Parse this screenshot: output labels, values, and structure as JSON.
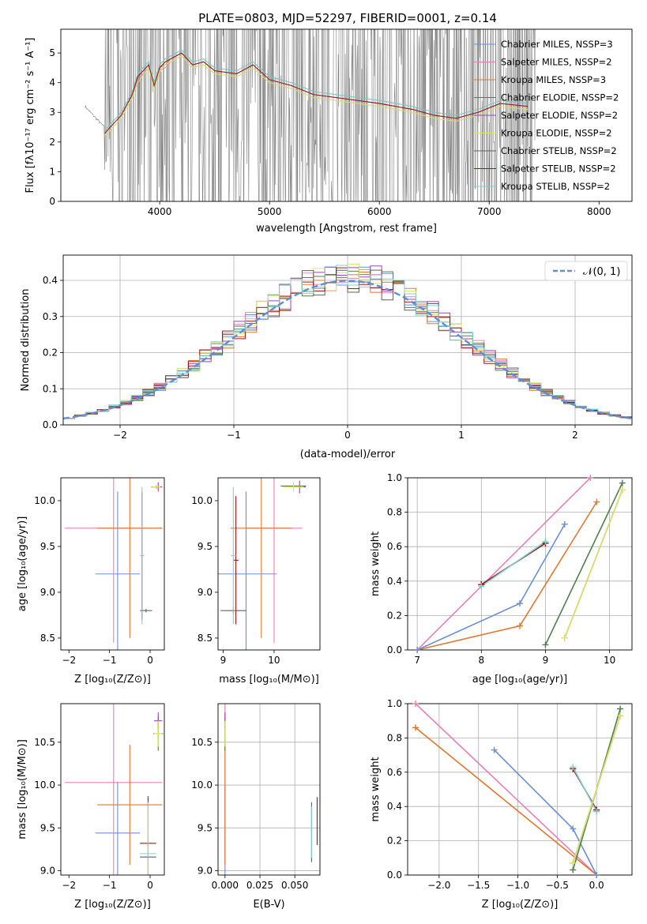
{
  "colors": {
    "Chabrier MILES": "#6a8fd8",
    "Salpeter MILES": "#e880b8",
    "Kroupa MILES": "#e07830",
    "Chabrier ELODIE": "#508050",
    "Salpeter ELODIE": "#a040c0",
    "Kroupa ELODIE": "#d8e860",
    "Chabrier STELIB": "#606060",
    "Salpeter STELIB": "#a01818",
    "Kroupa STELIB": "#80d0d0",
    "normal": "#5b8fd6",
    "data": "#808080"
  },
  "chart_data": [
    {
      "type": "line",
      "title": "PLATE=0803, MJD=52297, FIBERID=0001, z=0.14",
      "xlabel": "wavelength [Angstrom, rest frame]",
      "ylabel": "Flux [fλ10⁻¹⁷ erg cm⁻² s⁻¹ A⁻¹]",
      "xlim": [
        3100,
        8300
      ],
      "ylim": [
        0,
        5.8
      ],
      "x_ticks": [
        "4000",
        "5000",
        "6000",
        "7000",
        "8000"
      ],
      "y_ticks": [
        "0",
        "1",
        "2",
        "3",
        "4",
        "5"
      ],
      "model_x": [
        3500,
        3600,
        3650,
        3750,
        3800,
        3900,
        3950,
        4000,
        4050,
        4100,
        4200,
        4300,
        4400,
        4500,
        4700,
        4850,
        5000,
        5200,
        5400,
        5600,
        5800,
        6000,
        6300,
        6500,
        6700,
        6900,
        7100,
        7350
      ],
      "series": [
        {
          "name": "Chabrier MILES, N_SSP=3",
          "values": [
            2.3,
            2.7,
            2.9,
            3.6,
            4.2,
            4.6,
            3.9,
            4.5,
            4.7,
            4.8,
            5.0,
            4.6,
            4.7,
            4.4,
            4.3,
            4.6,
            4.1,
            3.9,
            3.6,
            3.5,
            3.4,
            3.3,
            3.1,
            2.9,
            2.8,
            3.0,
            3.3,
            3.2
          ]
        },
        {
          "name": "Salpeter MILES, N_SSP=2",
          "values": [
            2.2,
            2.6,
            2.8,
            3.5,
            4.1,
            4.5,
            3.8,
            4.4,
            4.5,
            4.7,
            4.9,
            4.5,
            4.6,
            4.3,
            4.2,
            4.5,
            4.0,
            3.8,
            3.5,
            3.4,
            3.3,
            3.2,
            3.0,
            2.8,
            2.7,
            2.9,
            3.2,
            3.1
          ]
        },
        {
          "name": "Kroupa MILES, N_SSP=3",
          "values": [
            2.3,
            2.7,
            2.9,
            3.6,
            4.2,
            4.6,
            3.9,
            4.5,
            4.6,
            4.8,
            5.0,
            4.6,
            4.7,
            4.4,
            4.3,
            4.6,
            4.1,
            3.9,
            3.6,
            3.5,
            3.4,
            3.3,
            3.1,
            2.9,
            2.8,
            3.0,
            3.3,
            3.2
          ]
        },
        {
          "name": "Chabrier ELODIE, N_SSP=2",
          "values": [
            2.4,
            2.8,
            3.0,
            3.7,
            4.3,
            4.7,
            4.0,
            4.6,
            4.8,
            4.9,
            5.1,
            4.7,
            4.8,
            4.5,
            4.4,
            4.7,
            4.2,
            4.0,
            3.7,
            3.6,
            3.5,
            3.4,
            3.2,
            3.0,
            2.9,
            3.1,
            3.4,
            3.3
          ]
        },
        {
          "name": "Salpeter ELODIE, N_SSP=2",
          "values": [
            2.3,
            2.7,
            2.9,
            3.6,
            4.2,
            4.6,
            3.9,
            4.5,
            4.7,
            4.8,
            5.0,
            4.6,
            4.7,
            4.4,
            4.3,
            4.6,
            4.1,
            3.9,
            3.6,
            3.5,
            3.4,
            3.3,
            3.1,
            2.9,
            2.8,
            3.0,
            3.3,
            3.2
          ]
        },
        {
          "name": "Kroupa ELODIE, N_SSP=2",
          "values": [
            2.2,
            2.6,
            2.8,
            3.5,
            4.0,
            4.5,
            3.8,
            4.4,
            4.6,
            4.7,
            4.9,
            4.5,
            4.6,
            4.3,
            4.2,
            4.5,
            4.0,
            3.8,
            3.5,
            3.4,
            3.3,
            3.2,
            3.0,
            2.8,
            2.7,
            2.9,
            3.2,
            3.1
          ]
        },
        {
          "name": "Chabrier STELIB, N_SSP=2",
          "values": [
            2.3,
            2.7,
            2.9,
            3.6,
            4.2,
            4.6,
            3.9,
            4.5,
            4.7,
            4.8,
            5.0,
            4.6,
            4.7,
            4.4,
            4.3,
            4.6,
            4.1,
            3.9,
            3.6,
            3.5,
            3.4,
            3.3,
            3.1,
            2.9,
            2.8,
            3.0,
            3.3,
            3.2
          ]
        },
        {
          "name": "Salpeter STELIB, N_SSP=2",
          "values": [
            2.3,
            2.7,
            2.9,
            3.6,
            4.2,
            4.6,
            3.9,
            4.5,
            4.7,
            4.8,
            5.0,
            4.6,
            4.7,
            4.4,
            4.3,
            4.6,
            4.1,
            3.9,
            3.6,
            3.5,
            3.4,
            3.3,
            3.1,
            2.9,
            2.8,
            3.0,
            3.3,
            3.2
          ]
        },
        {
          "name": "Kroupa STELIB, N_SSP=2",
          "values": [
            2.4,
            2.8,
            3.0,
            3.7,
            4.3,
            4.7,
            4.0,
            4.6,
            4.8,
            4.9,
            5.1,
            4.7,
            4.8,
            4.5,
            4.4,
            4.7,
            4.2,
            4.0,
            3.7,
            3.6,
            3.5,
            3.4,
            3.2,
            3.0,
            2.9,
            3.1,
            3.4,
            3.3
          ]
        }
      ],
      "data_range": [
        3500,
        7420
      ],
      "legend": "top-right"
    },
    {
      "type": "line",
      "xlabel": "(data-model)/error",
      "ylabel": "Normed distribution",
      "xlim": [
        -2.5,
        2.5
      ],
      "ylim": [
        0,
        0.47
      ],
      "x_ticks": [
        "−2",
        "−1",
        "0",
        "1",
        "2"
      ],
      "y_ticks": [
        "0.0",
        "0.1",
        "0.2",
        "0.3",
        "0.4"
      ],
      "legend_label": "𝒩(0, 1)",
      "legend": "top-right",
      "grid": true,
      "normal": {
        "mean": 0,
        "sigma": 1
      },
      "histogram_bins": {
        "start": -2.5,
        "step": 0.1,
        "count": 50
      }
    },
    {
      "type": "scatter",
      "xlabel": "Z [log₁₀(Z/Z⊙)]",
      "ylabel": "age  [log₁₀(age/yr)]",
      "xlim": [
        -2.2,
        0.35
      ],
      "ylim": [
        8.37,
        10.25
      ],
      "x_ticks": [
        "−2",
        "−1",
        "0"
      ],
      "y_ticks": [
        "8.5",
        "9.0",
        "9.5",
        "10.0"
      ],
      "points": [
        {
          "series": "Chabrier MILES",
          "x": -0.8,
          "y": 9.2,
          "xerr": 0.55,
          "yerr": 0.9
        },
        {
          "series": "Salpeter MILES",
          "x": -0.9,
          "y": 9.7,
          "xerr": 1.2,
          "yerr": 1.25
        },
        {
          "series": "Kroupa MILES",
          "x": -0.5,
          "y": 9.7,
          "xerr": 0.8,
          "yerr": 1.2
        },
        {
          "series": "Chabrier ELODIE",
          "x": 0.15,
          "y": 10.15,
          "xerr": 0.12,
          "yerr": 0.02
        },
        {
          "series": "Salpeter ELODIE",
          "x": 0.2,
          "y": 10.15,
          "xerr": 0.1,
          "yerr": 0.05
        },
        {
          "series": "Kroupa ELODIE",
          "x": 0.15,
          "y": 10.15,
          "xerr": 0.1,
          "yerr": 0.02
        },
        {
          "series": "Chabrier STELIB",
          "x": -0.1,
          "y": 8.8,
          "xerr": 0.15,
          "yerr": 0.02
        },
        {
          "series": "Salpeter STELIB",
          "x": -0.2,
          "y": 9.4,
          "xerr": 0.02,
          "yerr": 0.7
        },
        {
          "series": "Kroupa STELIB",
          "x": -0.2,
          "y": 9.4,
          "xerr": 0.05,
          "yerr": 0.75
        }
      ]
    },
    {
      "type": "scatter",
      "xlabel": "mass [log₁₀(M/M⊙)]",
      "xlim": [
        8.9,
        10.9
      ],
      "ylim": [
        8.37,
        10.25
      ],
      "x_ticks": [
        "9",
        "10"
      ],
      "y_ticks": [
        "8.5",
        "9.0",
        "9.5",
        "10.0"
      ],
      "points": [
        {
          "series": "Chabrier MILES",
          "x": 9.45,
          "y": 9.2,
          "xerr": 0.6,
          "yerr": 0.9
        },
        {
          "series": "Salpeter MILES",
          "x": 10.0,
          "y": 9.7,
          "xerr": 0.55,
          "yerr": 1.25
        },
        {
          "series": "Kroupa MILES",
          "x": 9.75,
          "y": 9.7,
          "xerr": 0.6,
          "yerr": 1.2
        },
        {
          "series": "Chabrier ELODIE",
          "x": 10.38,
          "y": 10.16,
          "xerr": 0.25,
          "yerr": 0.02
        },
        {
          "series": "Salpeter ELODIE",
          "x": 10.5,
          "y": 10.15,
          "xerr": 0.12,
          "yerr": 0.07
        },
        {
          "series": "Kroupa ELODIE",
          "x": 10.38,
          "y": 10.15,
          "xerr": 0.2,
          "yerr": 0.05
        },
        {
          "series": "Chabrier STELIB",
          "x": 9.2,
          "y": 8.8,
          "xerr": 0.25,
          "yerr": 0.03
        },
        {
          "series": "Salpeter STELIB",
          "x": 9.25,
          "y": 9.35,
          "xerr": 0.05,
          "yerr": 0.7
        },
        {
          "series": "Kroupa STELIB",
          "x": 9.2,
          "y": 9.4,
          "xerr": 0.05,
          "yerr": 0.75
        }
      ]
    },
    {
      "type": "line",
      "xlabel": "age  [log₁₀(age/yr)]",
      "ylabel": "mass weight",
      "xlim": [
        6.85,
        10.35
      ],
      "ylim": [
        0,
        1.0
      ],
      "x_ticks": [
        "7",
        "8",
        "9",
        "10"
      ],
      "y_ticks": [
        "0.0",
        "0.2",
        "0.4",
        "0.6",
        "0.8",
        "1.0"
      ],
      "grid": true,
      "series": [
        {
          "series": "Salpeter MILES",
          "x": [
            7.0,
            9.7
          ],
          "y": [
            0.0,
            1.0
          ]
        },
        {
          "series": "Kroupa MILES",
          "x": [
            7.0,
            8.6,
            9.8
          ],
          "y": [
            0.0,
            0.14,
            0.86
          ]
        },
        {
          "series": "Chabrier MILES",
          "x": [
            7.0,
            8.6,
            9.3
          ],
          "y": [
            0.0,
            0.27,
            0.73
          ]
        },
        {
          "series": "Chabrier STELIB",
          "x": [
            8.0,
            9.0
          ],
          "y": [
            0.38,
            0.62
          ]
        },
        {
          "series": "Salpeter STELIB",
          "x": [
            8.0,
            9.0
          ],
          "y": [
            0.38,
            0.62
          ]
        },
        {
          "series": "Kroupa STELIB",
          "x": [
            8.0,
            9.0
          ],
          "y": [
            0.37,
            0.63
          ]
        },
        {
          "series": "Chabrier ELODIE",
          "x": [
            9.0,
            10.2
          ],
          "y": [
            0.03,
            0.97
          ]
        },
        {
          "series": "Salpeter ELODIE",
          "x": [
            9.3,
            10.2
          ],
          "y": [
            0.07,
            0.93
          ]
        },
        {
          "series": "Kroupa ELODIE",
          "x": [
            9.3,
            10.2
          ],
          "y": [
            0.07,
            0.93
          ]
        }
      ]
    },
    {
      "type": "scatter",
      "xlabel": "Z [log₁₀(Z/Z⊙)]",
      "ylabel": "mass [log₁₀(M/M⊙)]",
      "xlim": [
        -2.2,
        0.35
      ],
      "ylim": [
        8.95,
        10.95
      ],
      "x_ticks": [
        "−2",
        "−1",
        "0"
      ],
      "y_ticks": [
        "9.0",
        "9.5",
        "10.0",
        "10.5"
      ],
      "points": [
        {
          "series": "Chabrier MILES",
          "x": -0.8,
          "y": 9.44,
          "xerr": 0.55,
          "yerr": 0.6
        },
        {
          "series": "Salpeter MILES",
          "x": -0.9,
          "y": 10.03,
          "xerr": 1.2,
          "yerr": 1.1
        },
        {
          "series": "Kroupa MILES",
          "x": -0.5,
          "y": 9.77,
          "xerr": 0.8,
          "yerr": 0.7
        },
        {
          "series": "Chabrier ELODIE",
          "x": 0.2,
          "y": 10.6,
          "xerr": 0.12,
          "yerr": 0.2
        },
        {
          "series": "Salpeter ELODIE",
          "x": 0.2,
          "y": 10.75,
          "xerr": 0.1,
          "yerr": 0.1
        },
        {
          "series": "Kroupa ELODIE",
          "x": 0.2,
          "y": 10.6,
          "xerr": 0.1,
          "yerr": 0.15
        },
        {
          "series": "Chabrier STELIB",
          "x": -0.05,
          "y": 9.16,
          "xerr": 0.2,
          "yerr": 0.02
        },
        {
          "series": "Salpeter STELIB",
          "x": -0.05,
          "y": 9.32,
          "xerr": 0.2,
          "yerr": 0.55
        },
        {
          "series": "Kroupa STELIB",
          "x": -0.05,
          "y": 9.2,
          "xerr": 0.2,
          "yerr": 0.6
        }
      ]
    },
    {
      "type": "scatter",
      "xlabel": "E(B-V)",
      "xlim": [
        -0.005,
        0.068
      ],
      "ylim": [
        8.95,
        10.95
      ],
      "x_ticks": [
        "0.000",
        "0.025",
        "0.050"
      ],
      "y_ticks": [
        "9.0",
        "9.5",
        "10.0",
        "10.5"
      ],
      "grid": true,
      "points": [
        {
          "series": "Chabrier MILES",
          "x": 0.0,
          "y": 9.44,
          "yerr": 0.55
        },
        {
          "series": "Salpeter MILES",
          "x": 0.0,
          "y": 10.03,
          "yerr": 1.0
        },
        {
          "series": "Kroupa MILES",
          "x": 0.0,
          "y": 9.77,
          "yerr": 0.7
        },
        {
          "series": "Chabrier ELODIE",
          "x": 0.0,
          "y": 10.6,
          "yerr": 0.2
        },
        {
          "series": "Salpeter ELODIE",
          "x": 0.0,
          "y": 10.75,
          "yerr": 0.1
        },
        {
          "series": "Kroupa ELODIE",
          "x": 0.0,
          "y": 10.6,
          "yerr": 0.15
        },
        {
          "series": "Chabrier STELIB",
          "x": 0.062,
          "y": 9.45,
          "yerr": 0.35
        },
        {
          "series": "Salpeter STELIB",
          "x": 0.066,
          "y": 9.58,
          "yerr": 0.28
        },
        {
          "series": "Kroupa STELIB",
          "x": 0.062,
          "y": 9.45,
          "yerr": 0.3
        }
      ]
    },
    {
      "type": "line",
      "xlabel": "Z [log₁₀(Z/Z⊙)]",
      "ylabel": "mass weight",
      "xlim": [
        -2.4,
        0.45
      ],
      "ylim": [
        0,
        1.0
      ],
      "x_ticks": [
        "−2.0",
        "−1.5",
        "−1.0",
        "−0.5",
        "0.0"
      ],
      "y_ticks": [
        "0.0",
        "0.2",
        "0.4",
        "0.6",
        "0.8",
        "1.0"
      ],
      "grid": true,
      "series": [
        {
          "series": "Salpeter MILES",
          "x": [
            -2.3,
            0.0
          ],
          "y": [
            1.0,
            0.0
          ]
        },
        {
          "series": "Kroupa MILES",
          "x": [
            -2.3,
            0.0
          ],
          "y": [
            0.86,
            0.0
          ]
        },
        {
          "series": "Chabrier MILES",
          "x": [
            -1.3,
            -0.3,
            0.0
          ],
          "y": [
            0.73,
            0.27,
            0.0
          ]
        },
        {
          "series": "Chabrier STELIB",
          "x": [
            -0.3,
            0.0
          ],
          "y": [
            0.62,
            0.38
          ]
        },
        {
          "series": "Salpeter STELIB",
          "x": [
            -0.3,
            0.0
          ],
          "y": [
            0.62,
            0.38
          ]
        },
        {
          "series": "Kroupa STELIB",
          "x": [
            -0.3,
            0.0
          ],
          "y": [
            0.63,
            0.37
          ]
        },
        {
          "series": "Chabrier ELODIE",
          "x": [
            -0.3,
            0.3
          ],
          "y": [
            0.03,
            0.97
          ]
        },
        {
          "series": "Salpeter ELODIE",
          "x": [
            -0.3,
            0.3
          ],
          "y": [
            0.07,
            0.93
          ]
        },
        {
          "series": "Kroupa ELODIE",
          "x": [
            -0.3,
            0.3
          ],
          "y": [
            0.07,
            0.93
          ]
        }
      ]
    }
  ]
}
